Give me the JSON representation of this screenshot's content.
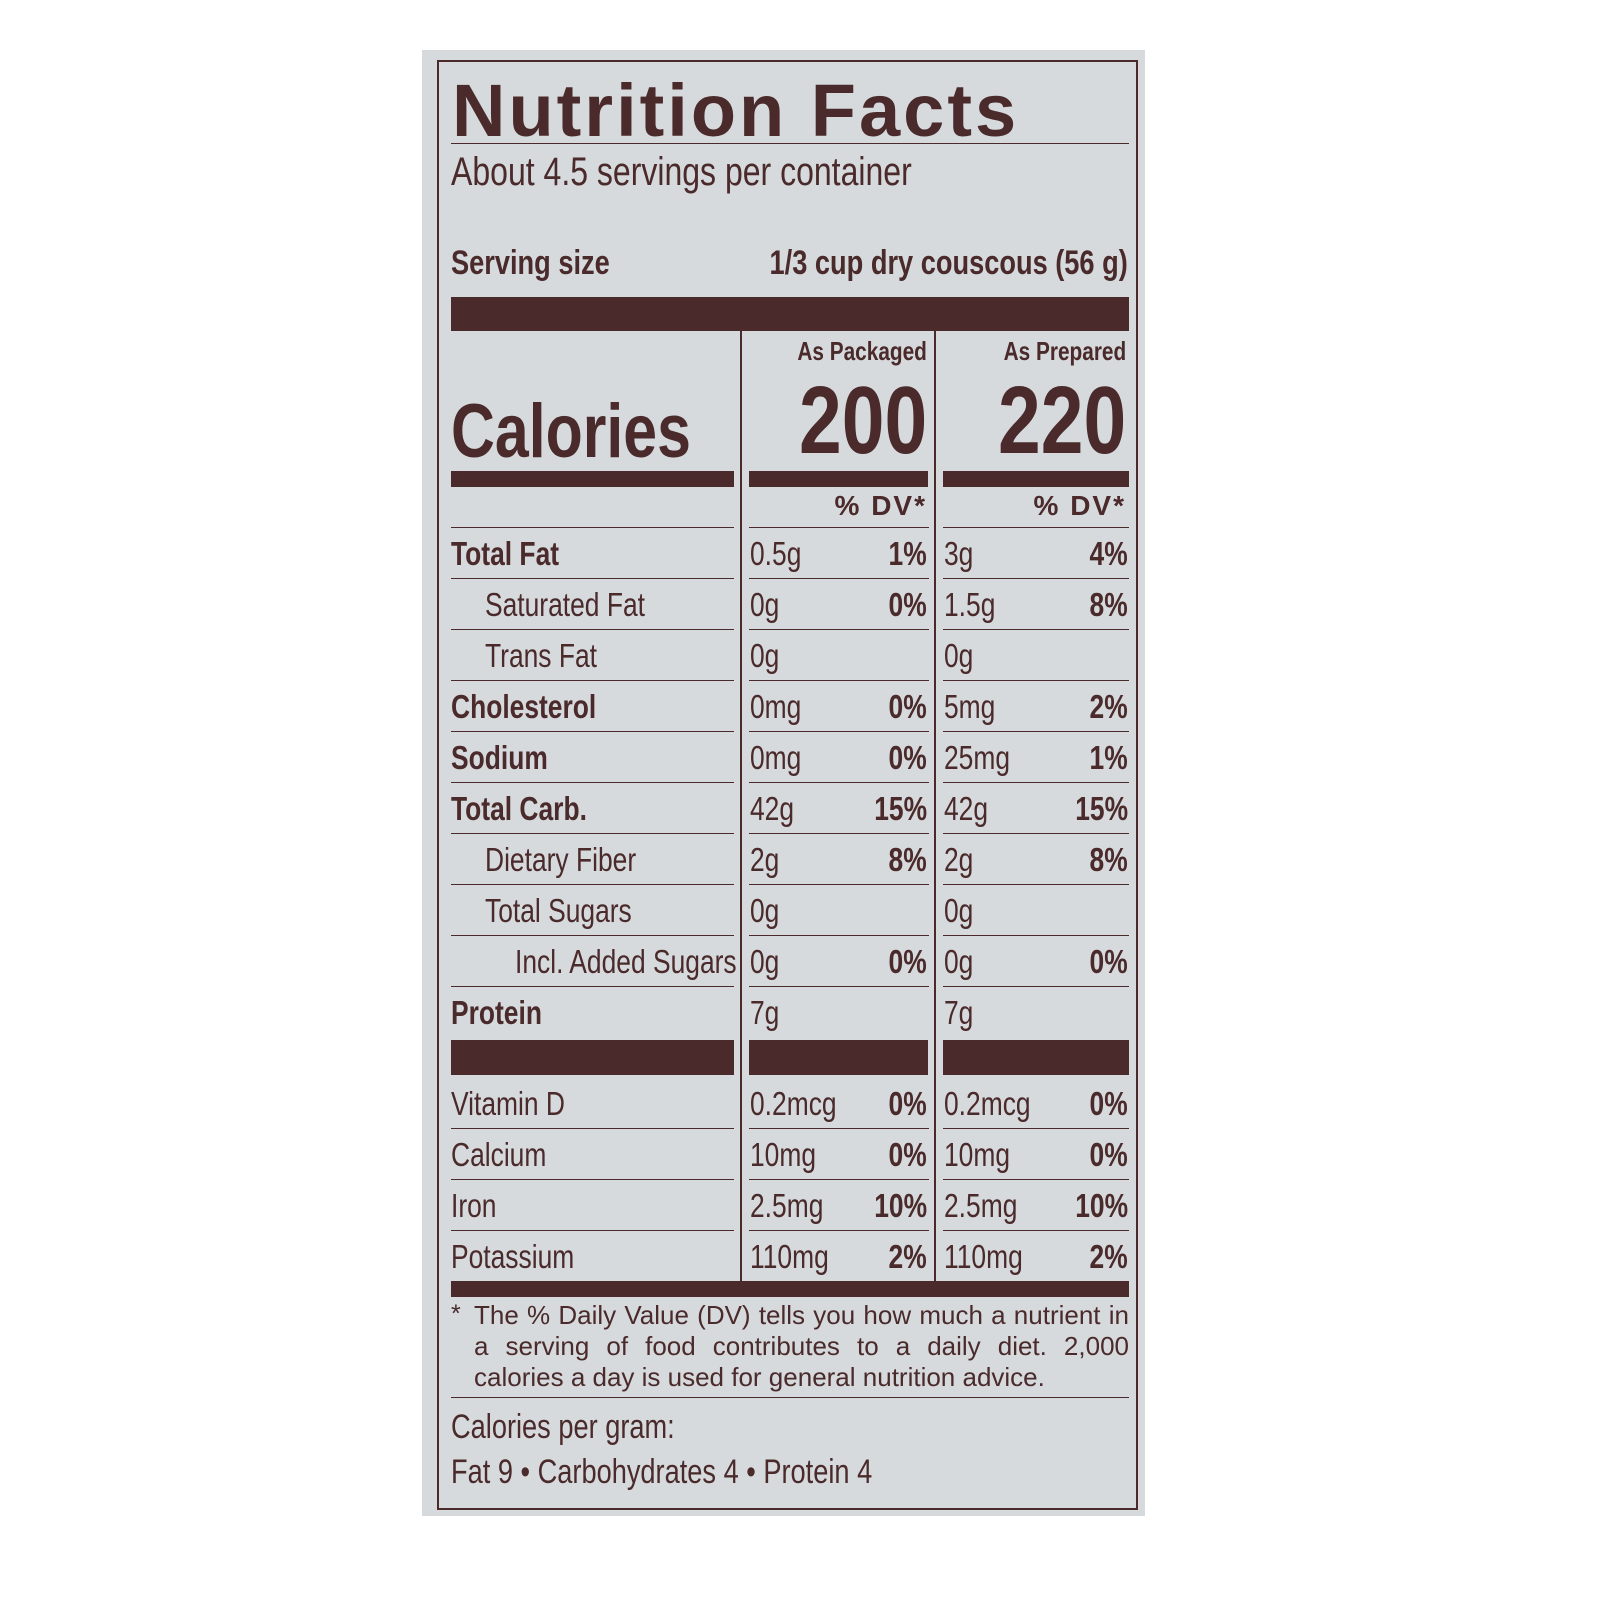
{
  "label": {
    "title": "Nutrition Facts",
    "servings": "About 4.5 servings per container",
    "serving_size_label": "Serving size",
    "serving_size_value": "1/3 cup dry couscous (56 g)",
    "columns": [
      {
        "header": "As Packaged",
        "calories": "200",
        "dv_header": "% DV*"
      },
      {
        "header": "As Prepared",
        "calories": "220",
        "dv_header": "% DV*"
      }
    ],
    "calories_label": "Calories",
    "nutrients": [
      {
        "name": "Total Fat",
        "bold": true,
        "indent": 0,
        "packaged": "0.5g",
        "packaged_dv": "1%",
        "prepared": "3g",
        "prepared_dv": "4%"
      },
      {
        "name": "Saturated Fat",
        "bold": false,
        "indent": 1,
        "packaged": "0g",
        "packaged_dv": "0%",
        "prepared": "1.5g",
        "prepared_dv": "8%"
      },
      {
        "name": "Trans Fat",
        "bold": false,
        "indent": 1,
        "packaged": "0g",
        "packaged_dv": "",
        "prepared": "0g",
        "prepared_dv": ""
      },
      {
        "name": "Cholesterol",
        "bold": true,
        "indent": 0,
        "packaged": "0mg",
        "packaged_dv": "0%",
        "prepared": "5mg",
        "prepared_dv": "2%"
      },
      {
        "name": "Sodium",
        "bold": true,
        "indent": 0,
        "packaged": "0mg",
        "packaged_dv": "0%",
        "prepared": "25mg",
        "prepared_dv": "1%"
      },
      {
        "name": "Total Carb.",
        "bold": true,
        "indent": 0,
        "packaged": "42g",
        "packaged_dv": "15%",
        "prepared": "42g",
        "prepared_dv": "15%"
      },
      {
        "name": "Dietary Fiber",
        "bold": false,
        "indent": 1,
        "packaged": "2g",
        "packaged_dv": "8%",
        "prepared": "2g",
        "prepared_dv": "8%"
      },
      {
        "name": "Total Sugars",
        "bold": false,
        "indent": 1,
        "packaged": "0g",
        "packaged_dv": "",
        "prepared": "0g",
        "prepared_dv": ""
      },
      {
        "name": "Incl. Added Sugars",
        "bold": false,
        "indent": 2,
        "packaged": "0g",
        "packaged_dv": "0%",
        "prepared": "0g",
        "prepared_dv": "0%"
      },
      {
        "name": "Protein",
        "bold": true,
        "indent": 0,
        "packaged": "7g",
        "packaged_dv": "",
        "prepared": "7g",
        "prepared_dv": ""
      }
    ],
    "vitamins": [
      {
        "name": "Vitamin D",
        "packaged": "0.2mcg",
        "packaged_dv": "0%",
        "prepared": "0.2mcg",
        "prepared_dv": "0%"
      },
      {
        "name": "Calcium",
        "packaged": "10mg",
        "packaged_dv": "0%",
        "prepared": "10mg",
        "prepared_dv": "0%"
      },
      {
        "name": "Iron",
        "packaged": "2.5mg",
        "packaged_dv": "10%",
        "prepared": "2.5mg",
        "prepared_dv": "10%"
      },
      {
        "name": "Potassium",
        "packaged": "110mg",
        "packaged_dv": "2%",
        "prepared": "110mg",
        "prepared_dv": "2%"
      }
    ],
    "footnote_star": "*",
    "footnote": "The % Daily Value (DV) tells you how much a nutrient in a serving of food contributes to a daily diet. 2,000 calories a day is used for general nutrition advice.",
    "calories_per_gram_label": "Calories per gram:",
    "calories_per_gram": "Fat 9 • Carbohydrates 4 • Protein 4"
  },
  "colors": {
    "ink": "#4a2a2b",
    "background": "#d6dadd"
  }
}
